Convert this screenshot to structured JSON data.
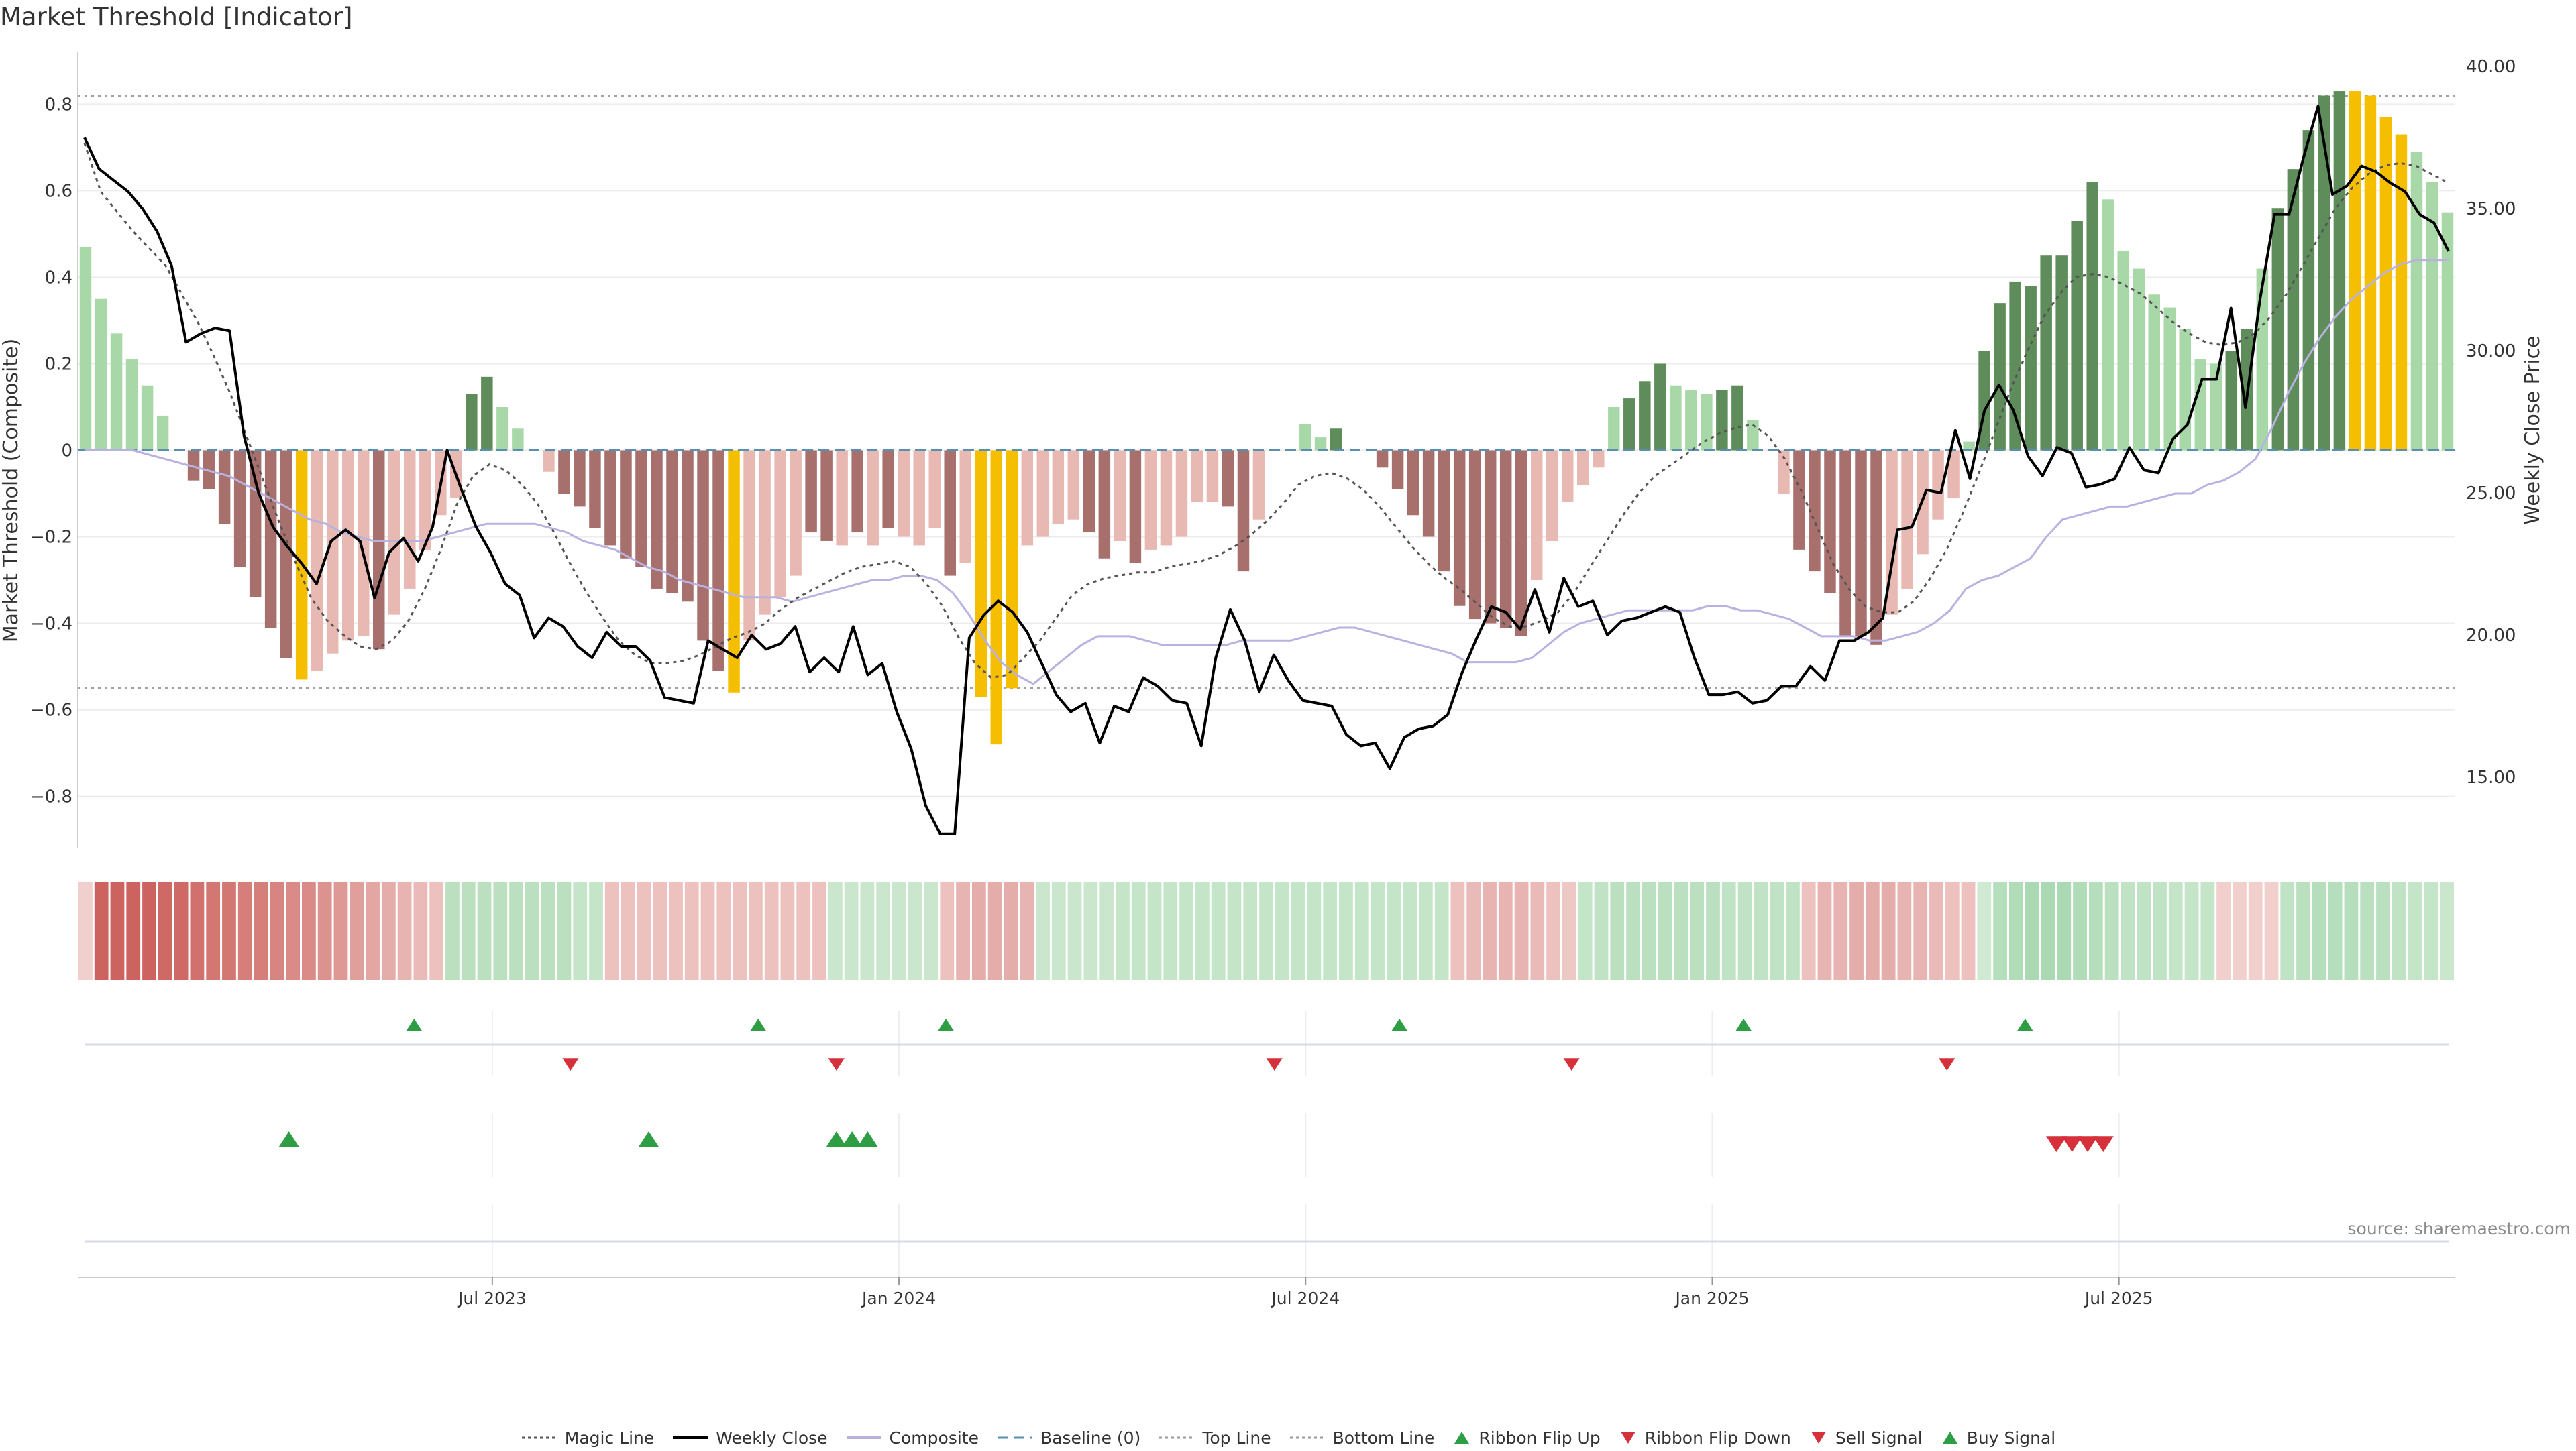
{
  "title": "Market Threshold [Indicator]",
  "source": "source: sharemaestro.com",
  "legend": [
    {
      "label": "Magic Line",
      "kind": "dotted",
      "color": "#555555"
    },
    {
      "label": "Weekly Close",
      "kind": "solid",
      "color": "#000000"
    },
    {
      "label": "Composite",
      "kind": "solid",
      "color": "#b9b1e0"
    },
    {
      "label": "Baseline (0)",
      "kind": "dashed",
      "color": "#5a8fb0"
    },
    {
      "label": "Top Line",
      "kind": "dotted",
      "color": "#999999"
    },
    {
      "label": "Bottom Line",
      "kind": "dotted",
      "color": "#999999"
    },
    {
      "label": "Ribbon Flip Up",
      "kind": "tri-up",
      "color": "#2e9e44"
    },
    {
      "label": "Ribbon Flip Down",
      "kind": "tri-down",
      "color": "#d6303a"
    },
    {
      "label": "Sell Signal",
      "kind": "tri-down",
      "color": "#d6303a"
    },
    {
      "label": "Buy Signal",
      "kind": "tri-up",
      "color": "#2e9e44"
    }
  ],
  "chart_data": {
    "type": "bar",
    "ylabel": "Market Threshold (Composite)",
    "y2label": "Weekly Close Price",
    "ylim": [
      -0.92,
      0.92
    ],
    "y2lim": [
      12.5,
      40.5
    ],
    "yticks": [
      "0.8",
      "0.6",
      "0.4",
      "0.2",
      "0",
      "−0.2",
      "−0.4",
      "−0.6",
      "−0.8"
    ],
    "y2ticks": [
      "40.00",
      "35.00",
      "30.00",
      "25.00",
      "20.00",
      "15.00"
    ],
    "xtick_labels": [
      "Jul 2023",
      "Jan 2024",
      "Jul 2024",
      "Jan 2025",
      "Jul 2025"
    ],
    "xtick_weeks": [
      26,
      52,
      78,
      104,
      130
    ],
    "top_line": 0.82,
    "bottom_line": -0.55,
    "grid": true,
    "weeks": 142,
    "bar_colors": {
      "light_green": "#a8d8a8",
      "dark_green": "#5e8c5a",
      "dark_red": "#a8706c",
      "light_red": "#e8b8b2",
      "extreme": "#f5bf00"
    },
    "composite_bars": [
      0.47,
      0.35,
      0.27,
      0.21,
      0.15,
      0.08,
      0.0,
      -0.07,
      -0.09,
      -0.17,
      -0.27,
      -0.34,
      -0.41,
      -0.48,
      -0.53,
      -0.51,
      -0.47,
      -0.44,
      -0.43,
      -0.46,
      -0.38,
      -0.32,
      -0.23,
      -0.15,
      -0.11,
      0.13,
      0.17,
      0.1,
      0.05,
      0.0,
      -0.05,
      -0.1,
      -0.13,
      -0.18,
      -0.22,
      -0.25,
      -0.27,
      -0.32,
      -0.33,
      -0.35,
      -0.44,
      -0.51,
      -0.56,
      -0.44,
      -0.38,
      -0.34,
      -0.29,
      -0.19,
      -0.21,
      -0.22,
      -0.19,
      -0.22,
      -0.18,
      -0.2,
      -0.22,
      -0.18,
      -0.29,
      -0.26,
      -0.57,
      -0.68,
      -0.55,
      -0.22,
      -0.2,
      -0.17,
      -0.16,
      -0.19,
      -0.25,
      -0.21,
      -0.26,
      -0.23,
      -0.22,
      -0.2,
      -0.12,
      -0.12,
      -0.13,
      -0.28,
      -0.16,
      0.0,
      0.0,
      0.06,
      0.03,
      0.05,
      0.0,
      0.0,
      -0.04,
      -0.09,
      -0.15,
      -0.2,
      -0.28,
      -0.36,
      -0.39,
      -0.4,
      -0.41,
      -0.43,
      -0.3,
      -0.21,
      -0.12,
      -0.08,
      -0.04,
      0.1,
      0.12,
      0.16,
      0.2,
      0.15,
      0.14,
      0.13,
      0.14,
      0.15,
      0.07,
      0.0,
      -0.1,
      -0.23,
      -0.28,
      -0.33,
      -0.43,
      -0.43,
      -0.45,
      -0.38,
      -0.32,
      -0.24,
      -0.16,
      -0.11,
      0.02,
      0.23,
      0.34,
      0.39,
      0.38,
      0.45,
      0.45,
      0.53,
      0.62,
      0.58,
      0.46,
      0.42,
      0.36,
      0.33,
      0.28,
      0.21,
      0.2,
      0.23,
      0.28,
      0.42,
      0.56,
      0.65,
      0.74,
      0.82,
      0.83,
      0.83,
      0.82,
      0.77,
      0.73,
      0.69,
      0.62,
      0.55
    ],
    "bar_class": [
      "lg",
      "lg",
      "lg",
      "lg",
      "lg",
      "lg",
      "lg",
      "dr",
      "dr",
      "dr",
      "dr",
      "dr",
      "dr",
      "dr",
      "ex",
      "lr",
      "lr",
      "lr",
      "lr",
      "dr",
      "lr",
      "lr",
      "lr",
      "lr",
      "lr",
      "dg",
      "dg",
      "lg",
      "lg",
      "lg",
      "lr",
      "dr",
      "dr",
      "dr",
      "dr",
      "dr",
      "dr",
      "dr",
      "dr",
      "dr",
      "dr",
      "dr",
      "ex",
      "lr",
      "lr",
      "lr",
      "lr",
      "dr",
      "dr",
      "lr",
      "dr",
      "lr",
      "dr",
      "lr",
      "lr",
      "lr",
      "dr",
      "lr",
      "ex",
      "ex",
      "ex",
      "lr",
      "lr",
      "lr",
      "lr",
      "dr",
      "dr",
      "lr",
      "dr",
      "lr",
      "lr",
      "lr",
      "lr",
      "lr",
      "dr",
      "dr",
      "lr",
      "lr",
      "lr",
      "lg",
      "lg",
      "dg",
      "lr",
      "lr",
      "dr",
      "dr",
      "dr",
      "dr",
      "dr",
      "dr",
      "dr",
      "dr",
      "dr",
      "dr",
      "lr",
      "lr",
      "lr",
      "lr",
      "lr",
      "lg",
      "dg",
      "dg",
      "dg",
      "lg",
      "lg",
      "lg",
      "dg",
      "dg",
      "lg",
      "lr",
      "lr",
      "dr",
      "dr",
      "dr",
      "dr",
      "dr",
      "dr",
      "lr",
      "lr",
      "lr",
      "lr",
      "lr",
      "lg",
      "dg",
      "dg",
      "dg",
      "dg",
      "dg",
      "dg",
      "dg",
      "dg",
      "lg",
      "lg",
      "lg",
      "lg",
      "lg",
      "lg",
      "lg",
      "lg",
      "dg",
      "dg",
      "lg",
      "dg",
      "dg",
      "dg",
      "dg",
      "dg",
      "ex",
      "ex",
      "ex",
      "ex",
      "lg",
      "lg",
      "lg",
      "lg",
      "lg"
    ],
    "weekly_close": [
      37.5,
      36.4,
      36.0,
      35.6,
      35.0,
      34.2,
      33.0,
      30.3,
      30.6,
      30.8,
      30.7,
      27.0,
      25.0,
      23.8,
      23.1,
      22.5,
      21.8,
      23.3,
      23.7,
      23.3,
      21.3,
      22.9,
      23.4,
      22.6,
      23.8,
      26.5,
      25.1,
      23.8,
      22.9,
      21.8,
      21.4,
      19.9,
      20.6,
      20.3,
      19.6,
      19.2,
      20.1,
      19.6,
      19.6,
      19.1,
      17.8,
      17.7,
      17.6,
      19.8,
      19.5,
      19.2,
      20.0,
      19.5,
      19.7,
      20.3,
      18.7,
      19.2,
      18.7,
      20.3,
      18.6,
      19.0,
      17.3,
      16.0,
      14.0,
      13.0,
      13.0,
      19.9,
      20.7,
      21.2,
      20.8,
      20.1,
      19.0,
      17.9,
      17.3,
      17.6,
      16.2,
      17.5,
      17.3,
      18.5,
      18.2,
      17.7,
      17.6,
      16.1,
      19.2,
      20.9,
      19.8,
      18.0,
      19.3,
      18.4,
      17.7,
      17.6,
      17.5,
      16.5,
      16.1,
      16.2,
      15.3,
      16.4,
      16.7,
      16.8,
      17.2,
      18.7,
      19.9,
      21.0,
      20.8,
      20.2,
      21.6,
      20.1,
      22.0,
      21.0,
      21.2,
      20.0,
      20.5,
      20.6,
      20.8,
      21.0,
      20.8,
      19.2,
      17.9,
      17.9,
      18.0,
      17.6,
      17.7,
      18.2,
      18.2,
      18.9,
      18.4,
      19.8,
      19.8,
      20.1,
      20.6,
      23.7,
      23.8,
      25.1,
      25.0,
      27.2,
      25.5,
      27.9,
      28.8,
      27.9,
      26.3,
      25.6,
      26.6,
      26.4,
      25.2,
      25.3,
      25.5,
      26.6,
      25.8,
      25.7,
      26.9,
      27.4,
      29.0,
      29.0,
      31.5,
      28.0,
      31.8,
      34.8,
      34.8,
      36.8,
      38.6,
      35.5,
      35.8,
      36.5,
      36.3,
      35.9,
      35.6,
      34.8,
      34.5,
      33.5
    ],
    "magic_line": [
      37.3,
      35.6,
      34.9,
      34.2,
      33.6,
      33.0,
      32.0,
      31.0,
      29.8,
      28.5,
      27.0,
      25.5,
      24.0,
      22.6,
      21.3,
      20.5,
      20.0,
      19.6,
      19.5,
      19.8,
      20.5,
      21.6,
      23.0,
      24.6,
      25.6,
      26.0,
      25.8,
      25.3,
      24.6,
      23.6,
      22.5,
      21.5,
      20.6,
      19.8,
      19.3,
      19.0,
      19.0,
      19.1,
      19.3,
      19.6,
      19.9,
      20.1,
      20.4,
      20.9,
      21.3,
      21.6,
      21.9,
      22.2,
      22.4,
      22.5,
      22.6,
      22.4,
      21.8,
      21.0,
      19.9,
      19.0,
      18.5,
      18.6,
      19.2,
      19.8,
      20.6,
      21.4,
      21.8,
      22.0,
      22.1,
      22.2,
      22.2,
      22.4,
      22.5,
      22.6,
      22.8,
      23.1,
      23.5,
      24.0,
      24.6,
      25.3,
      25.6,
      25.7,
      25.5,
      25.1,
      24.5,
      23.8,
      23.1,
      22.5,
      22.0,
      21.6,
      21.1,
      20.6,
      20.3,
      20.3,
      20.5,
      20.8,
      21.5,
      22.4,
      23.3,
      24.2,
      25.0,
      25.6,
      26.0,
      26.4,
      26.8,
      27.1,
      27.3,
      27.4,
      27.0,
      26.2,
      25.1,
      23.8,
      22.5,
      21.6,
      21.0,
      20.8,
      20.8,
      21.2,
      22.0,
      23.0,
      24.3,
      25.7,
      27.2,
      28.7,
      30.0,
      31.2,
      32.0,
      32.6,
      32.7,
      32.6,
      32.3,
      32.0,
      31.5,
      31.0,
      30.6,
      30.3,
      30.2,
      30.3,
      30.6,
      31.2,
      32.0,
      33.0,
      34.0,
      35.0,
      35.7,
      36.2,
      36.5,
      36.6,
      36.5,
      36.2,
      35.9
    ],
    "composite_line": [
      0.0,
      0.0,
      0.0,
      0.0,
      -0.01,
      -0.02,
      -0.03,
      -0.04,
      -0.05,
      -0.06,
      -0.08,
      -0.1,
      -0.12,
      -0.14,
      -0.16,
      -0.17,
      -0.19,
      -0.2,
      -0.21,
      -0.21,
      -0.21,
      -0.21,
      -0.2,
      -0.19,
      -0.18,
      -0.17,
      -0.17,
      -0.17,
      -0.17,
      -0.18,
      -0.19,
      -0.21,
      -0.22,
      -0.23,
      -0.25,
      -0.27,
      -0.28,
      -0.3,
      -0.31,
      -0.32,
      -0.33,
      -0.34,
      -0.34,
      -0.34,
      -0.35,
      -0.34,
      -0.33,
      -0.32,
      -0.31,
      -0.3,
      -0.3,
      -0.29,
      -0.29,
      -0.3,
      -0.33,
      -0.38,
      -0.44,
      -0.49,
      -0.52,
      -0.54,
      -0.51,
      -0.48,
      -0.45,
      -0.43,
      -0.43,
      -0.43,
      -0.44,
      -0.45,
      -0.45,
      -0.45,
      -0.45,
      -0.45,
      -0.44,
      -0.44,
      -0.44,
      -0.44,
      -0.43,
      -0.42,
      -0.41,
      -0.41,
      -0.42,
      -0.43,
      -0.44,
      -0.45,
      -0.46,
      -0.47,
      -0.49,
      -0.49,
      -0.49,
      -0.49,
      -0.48,
      -0.45,
      -0.42,
      -0.4,
      -0.39,
      -0.38,
      -0.37,
      -0.37,
      -0.37,
      -0.37,
      -0.37,
      -0.36,
      -0.36,
      -0.37,
      -0.37,
      -0.38,
      -0.39,
      -0.41,
      -0.43,
      -0.43,
      -0.43,
      -0.44,
      -0.44,
      -0.43,
      -0.42,
      -0.4,
      -0.37,
      -0.32,
      -0.3,
      -0.29,
      -0.27,
      -0.25,
      -0.2,
      -0.16,
      -0.15,
      -0.14,
      -0.13,
      -0.13,
      -0.12,
      -0.11,
      -0.1,
      -0.1,
      -0.08,
      -0.07,
      -0.05,
      -0.02,
      0.05,
      0.13,
      0.2,
      0.26,
      0.31,
      0.35,
      0.38,
      0.41,
      0.43,
      0.44,
      0.44,
      0.44
    ],
    "ribbon": [
      -0.1,
      -0.9,
      -0.9,
      -0.9,
      -0.9,
      -0.85,
      -0.85,
      -0.8,
      -0.75,
      -0.75,
      -0.7,
      -0.7,
      -0.65,
      -0.6,
      -0.6,
      -0.55,
      -0.5,
      -0.45,
      -0.4,
      -0.35,
      -0.3,
      -0.25,
      -0.2,
      0.4,
      0.4,
      0.4,
      0.4,
      0.4,
      0.4,
      0.4,
      0.4,
      0.3,
      0.3,
      -0.2,
      -0.2,
      -0.2,
      -0.2,
      -0.2,
      -0.2,
      -0.2,
      -0.2,
      -0.2,
      -0.2,
      -0.2,
      -0.2,
      -0.2,
      -0.2,
      0.25,
      0.25,
      0.25,
      0.25,
      0.25,
      0.25,
      0.25,
      -0.2,
      -0.3,
      -0.35,
      -0.35,
      -0.35,
      -0.3,
      0.25,
      0.25,
      0.25,
      0.25,
      0.25,
      0.3,
      0.3,
      0.3,
      0.3,
      0.3,
      0.3,
      0.3,
      0.3,
      0.3,
      0.3,
      0.3,
      0.3,
      0.3,
      0.3,
      0.3,
      0.3,
      0.3,
      0.3,
      0.3,
      0.3,
      0.3,
      -0.2,
      -0.25,
      -0.3,
      -0.3,
      -0.3,
      -0.25,
      -0.2,
      -0.15,
      0.3,
      0.35,
      0.4,
      0.4,
      0.4,
      0.4,
      0.4,
      0.4,
      0.4,
      0.35,
      0.35,
      0.35,
      0.35,
      0.35,
      -0.2,
      -0.3,
      -0.3,
      -0.35,
      -0.35,
      -0.35,
      -0.3,
      -0.3,
      -0.25,
      -0.2,
      -0.2,
      0.2,
      0.45,
      0.5,
      0.55,
      0.55,
      0.55,
      0.5,
      0.45,
      0.4,
      0.35,
      0.35,
      0.35,
      0.3,
      0.3,
      0.3,
      -0.1,
      -0.1,
      -0.1,
      -0.1,
      0.35,
      0.4,
      0.45,
      0.45,
      0.45,
      0.4,
      0.4,
      0.35,
      0.3,
      0.3,
      0.25
    ],
    "ribbon_flip_up": [
      21,
      43,
      55,
      84,
      106,
      124
    ],
    "ribbon_flip_down": [
      31,
      48,
      76,
      95,
      119
    ],
    "buy_signal": [
      13,
      36,
      48,
      49,
      50
    ],
    "sell_signal": [
      126,
      127,
      128,
      129
    ]
  }
}
